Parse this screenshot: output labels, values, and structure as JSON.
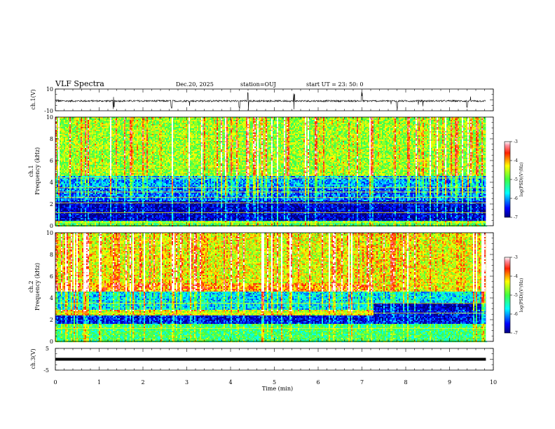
{
  "header": {
    "title": "VLF Spectra",
    "date": "Dec.20, 2025",
    "station": "station=OUJ",
    "start_ut": "start  UT  =   23: 50: 0"
  },
  "chart_data": [
    {
      "id": "ch1-waveform",
      "type": "line",
      "ylabel": "ch.1(V)",
      "ylim": [
        -10,
        10
      ],
      "y_ticks": [
        "10",
        "-10"
      ],
      "xlim": [
        0,
        10
      ],
      "baseline": -1.0,
      "spikes_min": [
        1.33,
        2.65,
        4.2,
        4.4,
        5.45,
        7.0,
        7.8,
        9.4
      ],
      "color": "#000000"
    },
    {
      "id": "ch1-spectrogram",
      "type": "heatmap",
      "ylabel_channel": "ch.1",
      "ylabel": "Frequency (kHz)",
      "ylim": [
        0,
        10
      ],
      "y_ticks": [
        "0",
        "2",
        "4",
        "6",
        "8",
        "10"
      ],
      "xlim": [
        0,
        10
      ],
      "data_extent_min": 9.83,
      "colorbar": {
        "label": "log(PSD)(V²/Hz)",
        "range": [
          -7,
          -3
        ],
        "ticks": [
          "-3",
          "-4",
          "-5",
          "-6",
          "-7"
        ]
      },
      "bands_khz": [
        {
          "f1": 0.0,
          "f2": 0.5,
          "level": -5.0
        },
        {
          "f1": 0.5,
          "f2": 2.3,
          "level": -6.8
        },
        {
          "f1": 2.3,
          "f2": 3.5,
          "level": -6.2
        },
        {
          "f1": 3.5,
          "f2": 4.6,
          "level": -6.0
        },
        {
          "f1": 4.6,
          "f2": 10.0,
          "level": -4.7
        }
      ],
      "line_freqs_khz": [
        0.3,
        1.2,
        2.1,
        2.6,
        3.1,
        3.5,
        4.4
      ]
    },
    {
      "id": "ch2-spectrogram",
      "type": "heatmap",
      "ylabel_channel": "ch.2",
      "ylabel": "Frequency (kHz)",
      "ylim": [
        0,
        10
      ],
      "y_ticks": [
        "0",
        "2",
        "4",
        "6",
        "8",
        "10"
      ],
      "xlim": [
        0,
        10
      ],
      "data_extent_min": 9.83,
      "colorbar": {
        "label": "log(PSD)(V²/Hz)",
        "range": [
          -7,
          -3
        ],
        "ticks": [
          "-3",
          "-4",
          "-5",
          "-6",
          "-7"
        ]
      },
      "bands_khz": [
        {
          "f1": 0.0,
          "f2": 1.6,
          "level": -5.2
        },
        {
          "f1": 1.6,
          "f2": 2.4,
          "level": -6.6
        },
        {
          "f1": 2.4,
          "f2": 2.9,
          "level": -4.5
        },
        {
          "f1": 2.9,
          "f2": 4.6,
          "level": -5.8
        },
        {
          "f1": 4.6,
          "f2": 5.3,
          "level": -4.0
        },
        {
          "f1": 5.3,
          "f2": 10.0,
          "level": -4.4
        }
      ],
      "band_change_min": 7.25,
      "line_freqs_khz": [
        1.2,
        2.6,
        3.5
      ]
    },
    {
      "id": "ch3-waveform",
      "type": "line",
      "ylabel": "ch.3(V)",
      "ylim": [
        -5,
        5
      ],
      "y_ticks": [
        "5",
        "-5"
      ],
      "xlim": [
        0,
        10
      ],
      "baseline": 0,
      "color": "#000000"
    }
  ],
  "x_axis": {
    "label": "Time  (min)",
    "ticks": [
      "0",
      "1",
      "2",
      "3",
      "4",
      "5",
      "6",
      "7",
      "8",
      "9",
      "10"
    ]
  }
}
